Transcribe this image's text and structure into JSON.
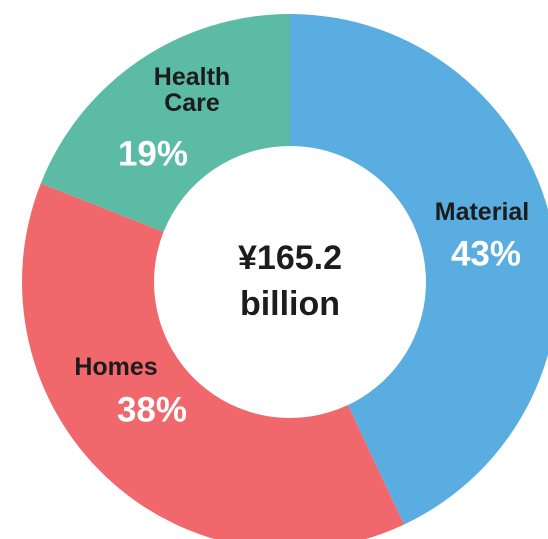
{
  "chart_data": {
    "type": "donut",
    "center_label": "¥165.2 billion",
    "categories": [
      "Material",
      "Homes",
      "Health Care"
    ],
    "values": [
      43,
      38,
      19
    ],
    "value_labels": [
      "43%",
      "38%",
      "19%"
    ],
    "colors": [
      "#5aade0",
      "#f0686c",
      "#5bbba4"
    ]
  }
}
